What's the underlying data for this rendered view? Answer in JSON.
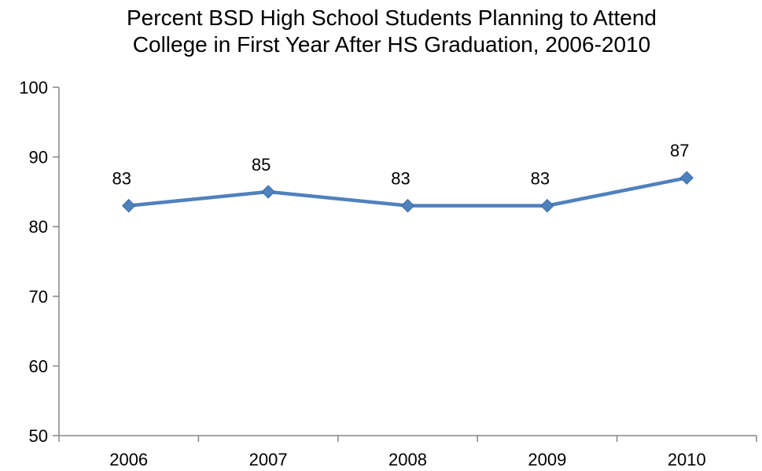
{
  "chart_data": {
    "type": "line",
    "title_lines": [
      "Percent BSD High School Students Planning to Attend",
      "College in First Year After HS Graduation, 2006-2010"
    ],
    "categories": [
      "2006",
      "2007",
      "2008",
      "2009",
      "2010"
    ],
    "series": [
      {
        "values": [
          83,
          85,
          83,
          83,
          87
        ],
        "color": "#4F81BD",
        "marker": "diamond",
        "data_labels": [
          "83",
          "85",
          "83",
          "83",
          "87"
        ]
      }
    ],
    "ylim": [
      50,
      100
    ],
    "yticks": [
      50,
      60,
      70,
      80,
      90,
      100
    ],
    "ytick_labels": [
      "50",
      "60",
      "70",
      "80",
      "90",
      "100"
    ],
    "xlabel": "",
    "ylabel": "",
    "grid": false,
    "legend": "none",
    "axis_color": "#868686"
  }
}
